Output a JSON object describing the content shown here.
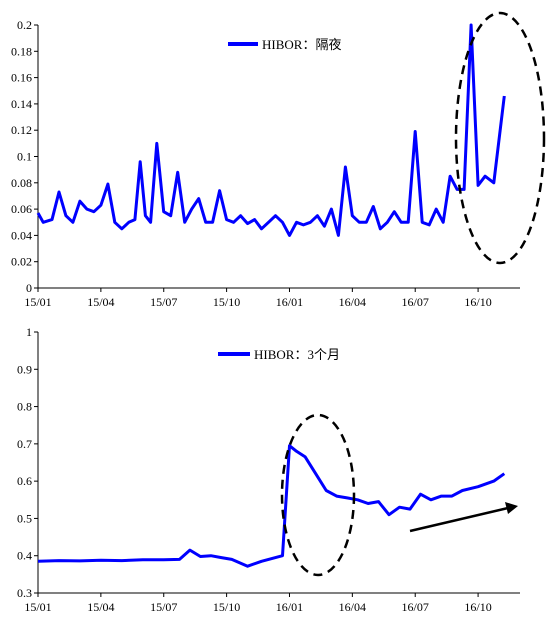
{
  "chart_data": [
    {
      "type": "line",
      "title": "",
      "xlabel": "",
      "ylabel": "",
      "legend": "top-center",
      "x_tick_labels": [
        "15/01",
        "15/04",
        "15/07",
        "15/10",
        "16/01",
        "16/04",
        "16/07",
        "16/10"
      ],
      "y_tick_labels": [
        "0",
        "0.02",
        "0.04",
        "0.06",
        "0.08",
        "0.1",
        "0.12",
        "0.14",
        "0.16",
        "0.18",
        "0.2"
      ],
      "ylim": [
        0,
        0.2
      ],
      "grid": false,
      "series": [
        {
          "name": "HIBOR：隔夜",
          "color": "#0000ff",
          "x": [
            "15/01",
            "15/01",
            "15/02",
            "15/02",
            "15/02",
            "15/03",
            "15/03",
            "15/03",
            "15/04",
            "15/04",
            "15/04",
            "15/05",
            "15/05",
            "15/05",
            "15/06",
            "15/06",
            "15/06",
            "15/06",
            "15/07",
            "15/07",
            "15/07",
            "15/08",
            "15/08",
            "15/08",
            "15/09",
            "15/09",
            "15/09",
            "15/10",
            "15/10",
            "15/10",
            "15/11",
            "15/11",
            "15/11",
            "15/12",
            "15/12",
            "15/12",
            "16/01",
            "16/01",
            "16/01",
            "16/02",
            "16/02",
            "16/02",
            "16/03",
            "16/03",
            "16/03",
            "16/04",
            "16/04",
            "16/04",
            "16/05",
            "16/05",
            "16/05",
            "16/06",
            "16/06",
            "16/06",
            "16/07",
            "16/07",
            "16/07",
            "16/08",
            "16/08",
            "16/08",
            "16/09",
            "16/09",
            "16/09",
            "16/10",
            "16/10",
            "16/10",
            "16/11",
            "16/11"
          ],
          "values": [
            0.057,
            0.05,
            0.052,
            0.073,
            0.055,
            0.05,
            0.066,
            0.06,
            0.058,
            0.063,
            0.079,
            0.05,
            0.045,
            0.05,
            0.052,
            0.096,
            0.055,
            0.05,
            0.11,
            0.058,
            0.055,
            0.088,
            0.05,
            0.06,
            0.068,
            0.05,
            0.05,
            0.074,
            0.052,
            0.05,
            0.055,
            0.049,
            0.052,
            0.045,
            0.05,
            0.055,
            0.05,
            0.04,
            0.05,
            0.048,
            0.05,
            0.055,
            0.047,
            0.06,
            0.04,
            0.092,
            0.055,
            0.05,
            0.05,
            0.062,
            0.045,
            0.05,
            0.058,
            0.05,
            0.05,
            0.119,
            0.05,
            0.048,
            0.06,
            0.05,
            0.085,
            0.075,
            0.075,
            0.2,
            0.078,
            0.085,
            0.08,
            0.146
          ]
        }
      ]
    },
    {
      "type": "line",
      "title": "",
      "xlabel": "",
      "ylabel": "",
      "legend": "top-center",
      "x_tick_labels": [
        "15/01",
        "15/04",
        "15/07",
        "15/10",
        "16/01",
        "16/04",
        "16/07",
        "16/10"
      ],
      "y_tick_labels": [
        "0.3",
        "0.4",
        "0.5",
        "0.6",
        "0.7",
        "0.8",
        "0.9",
        "1"
      ],
      "ylim": [
        0.3,
        1
      ],
      "grid": false,
      "series": [
        {
          "name": "HIBOR：3个月",
          "color": "#0000ff",
          "x": [
            "15/01",
            "15/02",
            "15/03",
            "15/04",
            "15/05",
            "15/06",
            "15/07",
            "15/08",
            "15/08",
            "15/09",
            "15/09",
            "15/10",
            "15/10",
            "15/11",
            "15/12",
            "15/12",
            "15/12",
            "16/01",
            "16/01",
            "16/01",
            "16/02",
            "16/02",
            "16/03",
            "16/03",
            "16/04",
            "16/04",
            "16/05",
            "16/05",
            "16/06",
            "16/06",
            "16/07",
            "16/07",
            "16/08",
            "16/08",
            "16/09",
            "16/09",
            "16/10",
            "16/11",
            "16/11"
          ],
          "values": [
            0.385,
            0.387,
            0.386,
            0.388,
            0.387,
            0.389,
            0.389,
            0.39,
            0.415,
            0.398,
            0.4,
            0.395,
            0.39,
            0.372,
            0.385,
            0.39,
            0.395,
            0.4,
            0.695,
            0.68,
            0.665,
            0.62,
            0.575,
            0.56,
            0.555,
            0.55,
            0.54,
            0.545,
            0.51,
            0.53,
            0.525,
            0.565,
            0.55,
            0.56,
            0.56,
            0.575,
            0.585,
            0.6,
            0.62
          ]
        }
      ]
    }
  ]
}
